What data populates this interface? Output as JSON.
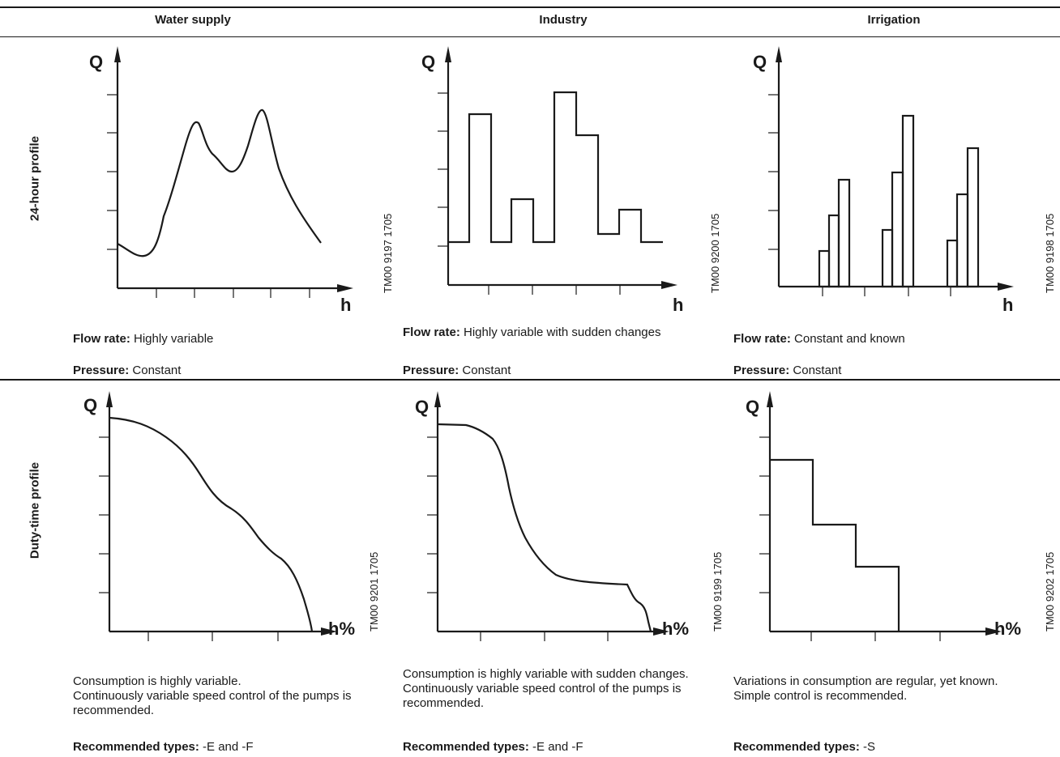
{
  "columns": [
    "Water supply",
    "Industry",
    "Irrigation"
  ],
  "rows": [
    "24-hour profile",
    "Duty-time profile"
  ],
  "axes": {
    "q": "Q",
    "h": "h",
    "h_pct": "h%"
  },
  "top": [
    {
      "code": "TM00 9197 1705",
      "flow_label": "Flow rate:",
      "flow_text": "Highly variable",
      "pressure_label": "Pressure:",
      "pressure_text": "Constant"
    },
    {
      "code": "TM00 9200 1705",
      "flow_label": "Flow rate:",
      "flow_text": "Highly variable with sudden changes",
      "pressure_label": "Pressure:",
      "pressure_text": "Constant"
    },
    {
      "code": "TM00 9198 1705",
      "flow_label": "Flow rate:",
      "flow_text": "Constant and known",
      "pressure_label": "Pressure:",
      "pressure_text": "Constant"
    }
  ],
  "bottom": [
    {
      "code": "TM00 9201 1705",
      "line1": "Consumption is highly variable.",
      "line2": "Continuously variable speed control of the pumps is recommended.",
      "rec_label": "Recommended types:",
      "rec_text": "-E and -F"
    },
    {
      "code": "TM00 9199 1705",
      "line1": "Consumption is highly variable with sudden changes.",
      "line2": "Continuously variable speed control of the pumps is recommended.",
      "rec_label": "Recommended types:",
      "rec_text": "-E and -F"
    },
    {
      "code": "TM00 9202 1705",
      "line1": "Variations in consumption are regular, yet known.",
      "line2": "Simple control is recommended.",
      "rec_label": "Recommended types:",
      "rec_text": "-S"
    }
  ]
}
